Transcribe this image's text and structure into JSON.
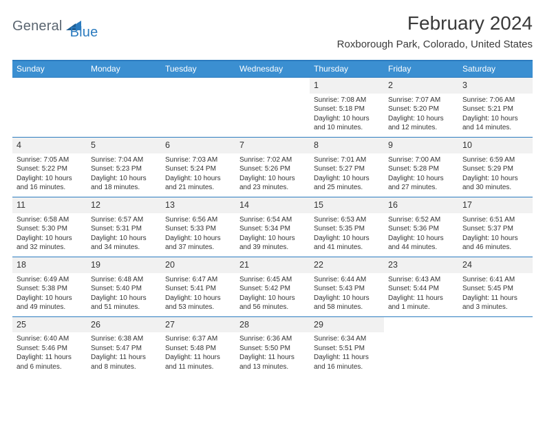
{
  "brand": {
    "general": "General",
    "blue": "Blue"
  },
  "title": "February 2024",
  "location": "Roxborough Park, Colorado, United States",
  "day_names": [
    "Sunday",
    "Monday",
    "Tuesday",
    "Wednesday",
    "Thursday",
    "Friday",
    "Saturday"
  ],
  "colors": {
    "header_bar": "#3b8fd1",
    "rule": "#2b7bbf",
    "daynum_bg": "#f1f1f1",
    "text": "#333333",
    "logo_gray": "#5a6570",
    "logo_blue": "#2b7bbf"
  },
  "typography": {
    "title_pt": 28,
    "location_pt": 15,
    "dow_pt": 12,
    "daynum_pt": 12.5,
    "body_pt": 10
  },
  "weeks": [
    [
      null,
      null,
      null,
      null,
      {
        "n": "1",
        "sunrise": "7:08 AM",
        "sunset": "5:18 PM",
        "daylight_a": "Daylight: 10 hours",
        "daylight_b": "and 10 minutes."
      },
      {
        "n": "2",
        "sunrise": "7:07 AM",
        "sunset": "5:20 PM",
        "daylight_a": "Daylight: 10 hours",
        "daylight_b": "and 12 minutes."
      },
      {
        "n": "3",
        "sunrise": "7:06 AM",
        "sunset": "5:21 PM",
        "daylight_a": "Daylight: 10 hours",
        "daylight_b": "and 14 minutes."
      }
    ],
    [
      {
        "n": "4",
        "sunrise": "7:05 AM",
        "sunset": "5:22 PM",
        "daylight_a": "Daylight: 10 hours",
        "daylight_b": "and 16 minutes."
      },
      {
        "n": "5",
        "sunrise": "7:04 AM",
        "sunset": "5:23 PM",
        "daylight_a": "Daylight: 10 hours",
        "daylight_b": "and 18 minutes."
      },
      {
        "n": "6",
        "sunrise": "7:03 AM",
        "sunset": "5:24 PM",
        "daylight_a": "Daylight: 10 hours",
        "daylight_b": "and 21 minutes."
      },
      {
        "n": "7",
        "sunrise": "7:02 AM",
        "sunset": "5:26 PM",
        "daylight_a": "Daylight: 10 hours",
        "daylight_b": "and 23 minutes."
      },
      {
        "n": "8",
        "sunrise": "7:01 AM",
        "sunset": "5:27 PM",
        "daylight_a": "Daylight: 10 hours",
        "daylight_b": "and 25 minutes."
      },
      {
        "n": "9",
        "sunrise": "7:00 AM",
        "sunset": "5:28 PM",
        "daylight_a": "Daylight: 10 hours",
        "daylight_b": "and 27 minutes."
      },
      {
        "n": "10",
        "sunrise": "6:59 AM",
        "sunset": "5:29 PM",
        "daylight_a": "Daylight: 10 hours",
        "daylight_b": "and 30 minutes."
      }
    ],
    [
      {
        "n": "11",
        "sunrise": "6:58 AM",
        "sunset": "5:30 PM",
        "daylight_a": "Daylight: 10 hours",
        "daylight_b": "and 32 minutes."
      },
      {
        "n": "12",
        "sunrise": "6:57 AM",
        "sunset": "5:31 PM",
        "daylight_a": "Daylight: 10 hours",
        "daylight_b": "and 34 minutes."
      },
      {
        "n": "13",
        "sunrise": "6:56 AM",
        "sunset": "5:33 PM",
        "daylight_a": "Daylight: 10 hours",
        "daylight_b": "and 37 minutes."
      },
      {
        "n": "14",
        "sunrise": "6:54 AM",
        "sunset": "5:34 PM",
        "daylight_a": "Daylight: 10 hours",
        "daylight_b": "and 39 minutes."
      },
      {
        "n": "15",
        "sunrise": "6:53 AM",
        "sunset": "5:35 PM",
        "daylight_a": "Daylight: 10 hours",
        "daylight_b": "and 41 minutes."
      },
      {
        "n": "16",
        "sunrise": "6:52 AM",
        "sunset": "5:36 PM",
        "daylight_a": "Daylight: 10 hours",
        "daylight_b": "and 44 minutes."
      },
      {
        "n": "17",
        "sunrise": "6:51 AM",
        "sunset": "5:37 PM",
        "daylight_a": "Daylight: 10 hours",
        "daylight_b": "and 46 minutes."
      }
    ],
    [
      {
        "n": "18",
        "sunrise": "6:49 AM",
        "sunset": "5:38 PM",
        "daylight_a": "Daylight: 10 hours",
        "daylight_b": "and 49 minutes."
      },
      {
        "n": "19",
        "sunrise": "6:48 AM",
        "sunset": "5:40 PM",
        "daylight_a": "Daylight: 10 hours",
        "daylight_b": "and 51 minutes."
      },
      {
        "n": "20",
        "sunrise": "6:47 AM",
        "sunset": "5:41 PM",
        "daylight_a": "Daylight: 10 hours",
        "daylight_b": "and 53 minutes."
      },
      {
        "n": "21",
        "sunrise": "6:45 AM",
        "sunset": "5:42 PM",
        "daylight_a": "Daylight: 10 hours",
        "daylight_b": "and 56 minutes."
      },
      {
        "n": "22",
        "sunrise": "6:44 AM",
        "sunset": "5:43 PM",
        "daylight_a": "Daylight: 10 hours",
        "daylight_b": "and 58 minutes."
      },
      {
        "n": "23",
        "sunrise": "6:43 AM",
        "sunset": "5:44 PM",
        "daylight_a": "Daylight: 11 hours",
        "daylight_b": "and 1 minute."
      },
      {
        "n": "24",
        "sunrise": "6:41 AM",
        "sunset": "5:45 PM",
        "daylight_a": "Daylight: 11 hours",
        "daylight_b": "and 3 minutes."
      }
    ],
    [
      {
        "n": "25",
        "sunrise": "6:40 AM",
        "sunset": "5:46 PM",
        "daylight_a": "Daylight: 11 hours",
        "daylight_b": "and 6 minutes."
      },
      {
        "n": "26",
        "sunrise": "6:38 AM",
        "sunset": "5:47 PM",
        "daylight_a": "Daylight: 11 hours",
        "daylight_b": "and 8 minutes."
      },
      {
        "n": "27",
        "sunrise": "6:37 AM",
        "sunset": "5:48 PM",
        "daylight_a": "Daylight: 11 hours",
        "daylight_b": "and 11 minutes."
      },
      {
        "n": "28",
        "sunrise": "6:36 AM",
        "sunset": "5:50 PM",
        "daylight_a": "Daylight: 11 hours",
        "daylight_b": "and 13 minutes."
      },
      {
        "n": "29",
        "sunrise": "6:34 AM",
        "sunset": "5:51 PM",
        "daylight_a": "Daylight: 11 hours",
        "daylight_b": "and 16 minutes."
      },
      null,
      null
    ]
  ],
  "labels": {
    "sunrise": "Sunrise: ",
    "sunset": "Sunset: "
  }
}
